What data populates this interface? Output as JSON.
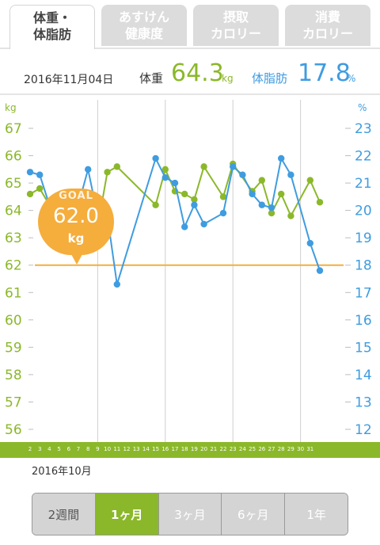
{
  "tabs": [
    {
      "label": "体重・\n体脂肪",
      "active": true
    },
    {
      "label": "あすけん\n健康度",
      "active": false
    },
    {
      "label": "摂取\nカロリー",
      "active": false
    },
    {
      "label": "消費\nカロリー",
      "active": false
    }
  ],
  "header": {
    "date": "2016年11月04日",
    "weight_label": "体重",
    "weight_value": "64.3",
    "weight_unit": "kg",
    "fat_label": "体脂肪",
    "fat_value": "17.8",
    "fat_unit": "%"
  },
  "goal": {
    "label": "GOAL",
    "value": "62.0",
    "unit": "kg"
  },
  "month_label": "2016年10月",
  "range_buttons": [
    "2週間",
    "1ヶ月",
    "3ヶ月",
    "6ヶ月",
    "1年"
  ],
  "range_active": 1,
  "colors": {
    "weight": "#8bb82a",
    "fat": "#3f9ce0",
    "goal": "#f5ad3c"
  },
  "chart_data": {
    "type": "line",
    "x": [
      2,
      3,
      4,
      5,
      6,
      7,
      8,
      9,
      10,
      11,
      12,
      13,
      14,
      15,
      16,
      17,
      18,
      19,
      20,
      21,
      22,
      23,
      24,
      25,
      26,
      27,
      28,
      29,
      30,
      31,
      32
    ],
    "x_tick_labels": [
      "2",
      "3",
      "4",
      "5",
      "6",
      "7",
      "8",
      "9",
      "10",
      "11",
      "12",
      "13",
      "14",
      "15",
      "16",
      "17",
      "18",
      "19",
      "20",
      "21",
      "22",
      "23",
      "24",
      "25",
      "26",
      "27",
      "28",
      "29",
      "30",
      "31"
    ],
    "y_left": {
      "label": "kg",
      "range": [
        56,
        67
      ],
      "ticks": [
        56,
        57,
        58,
        59,
        60,
        61,
        62,
        63,
        64,
        65,
        66,
        67
      ]
    },
    "y_right": {
      "label": "%",
      "range": [
        12,
        23
      ],
      "ticks": [
        12,
        13,
        14,
        15,
        16,
        17,
        18,
        19,
        20,
        21,
        22,
        23
      ]
    },
    "goal_line": 62.0,
    "series": [
      {
        "axis": "left",
        "points": [
          [
            2,
            64.6
          ],
          [
            3,
            64.8
          ],
          [
            4,
            64.2
          ],
          [
            6,
            64.5
          ],
          [
            8,
            64.2
          ],
          [
            9,
            63.4
          ],
          [
            10,
            65.4
          ],
          [
            11,
            65.6
          ],
          [
            15,
            64.2
          ],
          [
            16,
            65.5
          ],
          [
            17,
            64.7
          ],
          [
            18,
            64.6
          ],
          [
            19,
            64.4
          ],
          [
            20,
            65.6
          ],
          [
            22,
            64.5
          ],
          [
            23,
            65.7
          ],
          [
            25,
            64.7
          ],
          [
            26,
            65.1
          ],
          [
            27,
            63.9
          ],
          [
            28,
            64.6
          ],
          [
            29,
            63.8
          ],
          [
            31,
            65.1
          ],
          [
            32,
            64.3
          ]
        ]
      },
      {
        "axis": "right",
        "points": [
          [
            2,
            21.4
          ],
          [
            3,
            21.3
          ],
          [
            4,
            20.2
          ],
          [
            6,
            19.9
          ],
          [
            7,
            20.2
          ],
          [
            8,
            21.5
          ],
          [
            9,
            19.8
          ],
          [
            10,
            19.8
          ],
          [
            11,
            17.3
          ],
          [
            15,
            21.9
          ],
          [
            16,
            21.2
          ],
          [
            17,
            21.0
          ],
          [
            18,
            19.4
          ],
          [
            19,
            20.2
          ],
          [
            20,
            19.5
          ],
          [
            22,
            19.9
          ],
          [
            23,
            21.6
          ],
          [
            24,
            21.3
          ],
          [
            25,
            20.6
          ],
          [
            26,
            20.2
          ],
          [
            27,
            20.1
          ],
          [
            28,
            21.9
          ],
          [
            29,
            21.3
          ],
          [
            31,
            18.8
          ],
          [
            32,
            17.8
          ]
        ]
      }
    ],
    "grid": true
  }
}
